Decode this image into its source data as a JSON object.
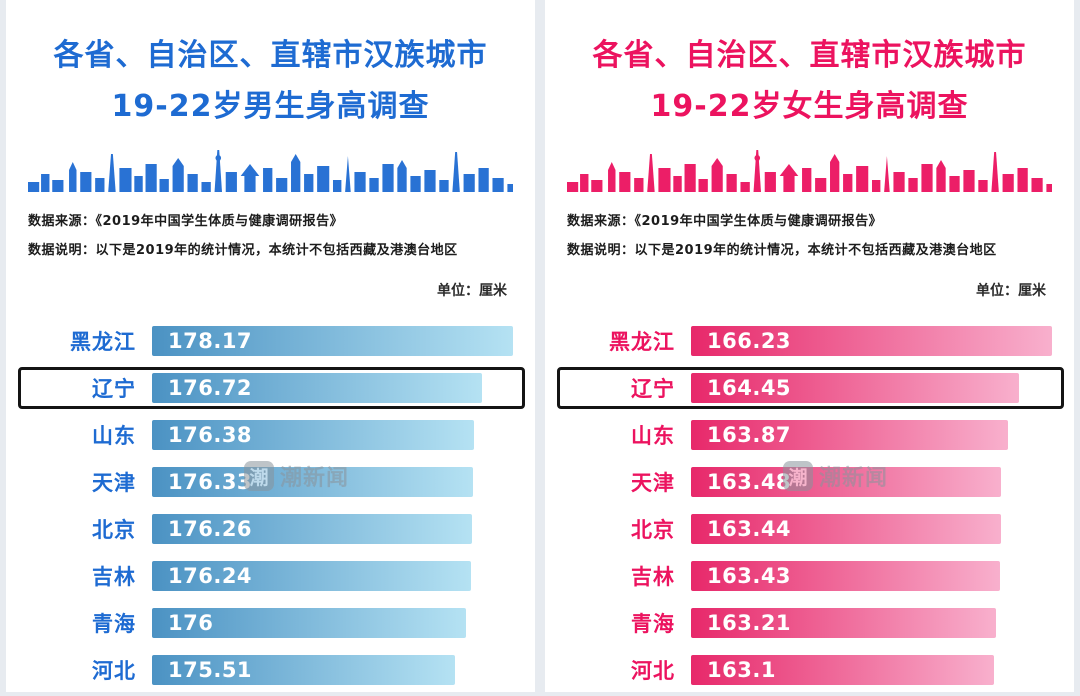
{
  "page": {
    "watermark_logo_char": "潮",
    "watermark_text": "潮新闻",
    "background_color": "#e7ebf0"
  },
  "chart_data": [
    {
      "type": "bar",
      "orientation": "horizontal",
      "title_line1": "各省、自治区、直辖市汉族城市",
      "title_line2": "19-22岁男生身高调查",
      "source": "数据来源：《2019年中国学生体质与健康调研报告》",
      "note": "数据说明：以下是2019年的统计情况，本统计不包括西藏及港澳台地区",
      "unit": "单位：厘米",
      "categories": [
        "黑龙江",
        "辽宁",
        "山东",
        "天津",
        "北京",
        "吉林",
        "青海",
        "河北"
      ],
      "values": [
        178.17,
        176.72,
        176.38,
        176.33,
        176.26,
        176.24,
        176,
        175.51
      ],
      "highlight_category": "辽宁",
      "accent": "#1e6bd2",
      "bar_gradient": [
        "#4b92c3",
        "#b5e2f3"
      ],
      "axis_visible": false,
      "value_labels": "inside-bar-left",
      "grid": false
    },
    {
      "type": "bar",
      "orientation": "horizontal",
      "title_line1": "各省、自治区、直辖市汉族城市",
      "title_line2": "19-22岁女生身高调查",
      "source": "数据来源：《2019年中国学生体质与健康调研报告》",
      "note": "数据说明：以下是2019年的统计情况，本统计不包括西藏及港澳台地区",
      "unit": "单位：厘米",
      "categories": [
        "黑龙江",
        "辽宁",
        "山东",
        "天津",
        "北京",
        "吉林",
        "青海",
        "河北"
      ],
      "values": [
        166.23,
        164.45,
        163.87,
        163.48,
        163.44,
        163.43,
        163.21,
        163.1
      ],
      "highlight_category": "辽宁",
      "accent": "#ec135f",
      "bar_gradient": [
        "#e7286a",
        "#f8b0cd"
      ],
      "axis_visible": false,
      "value_labels": "inside-bar-left",
      "grid": false
    }
  ]
}
